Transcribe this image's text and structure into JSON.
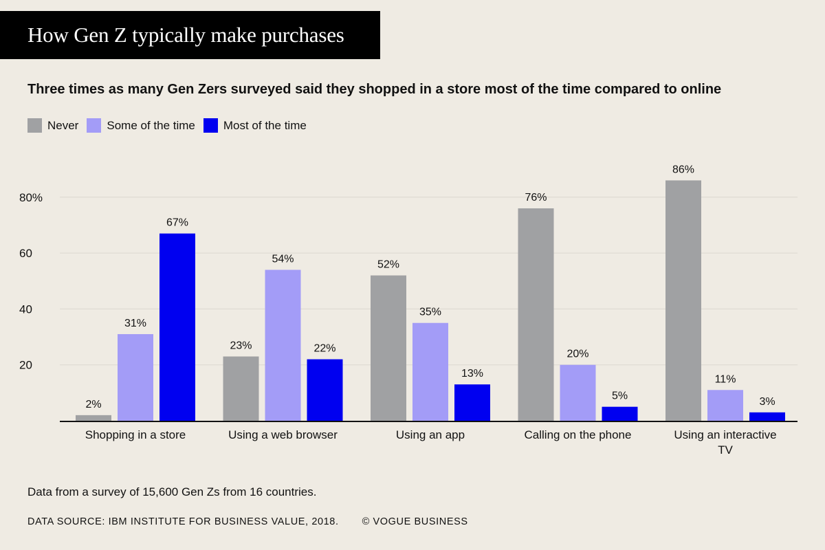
{
  "title": "How Gen Z typically make purchases",
  "subtitle": "Three times as many Gen Zers surveyed said they shopped in a store most of the time compared to online",
  "footnote": "Data from a survey of 15,600 Gen Zs from 16 countries.",
  "source": "DATA SOURCE: IBM INSTITUTE FOR BUSINESS VALUE, 2018.",
  "credit": "© VOGUE BUSINESS",
  "colors": {
    "background": "#efebe3",
    "never": "#a0a1a3",
    "some": "#a39cf7",
    "most": "#0000f0",
    "gridline": "#dcd8d0",
    "axis": "#111111"
  },
  "chart_data": {
    "type": "bar",
    "title": "How Gen Z typically make purchases",
    "subtitle": "Three times as many Gen Zers surveyed said they shopped in a store most of the time compared to online",
    "xlabel": "",
    "ylabel": "",
    "ylim": [
      0,
      86
    ],
    "yticks": [
      20,
      40,
      60,
      80
    ],
    "ytick_labels": [
      "20",
      "40",
      "60",
      "80%"
    ],
    "grid": true,
    "legend_position": "top-left",
    "categories": [
      [
        "Shopping in a store"
      ],
      [
        "Using a web browser"
      ],
      [
        "Using an app"
      ],
      [
        "Calling on the phone"
      ],
      [
        "Using an interactive",
        "TV"
      ]
    ],
    "series": [
      {
        "name": "Never",
        "color": "#a0a1a3",
        "values": [
          2,
          23,
          52,
          76,
          86
        ],
        "labels": [
          "2%",
          "23%",
          "52%",
          "76%",
          "86%"
        ]
      },
      {
        "name": "Some of the time",
        "color": "#a39cf7",
        "values": [
          31,
          54,
          35,
          20,
          11
        ],
        "labels": [
          "31%",
          "54%",
          "35%",
          "20%",
          "11%"
        ]
      },
      {
        "name": "Most of the time",
        "color": "#0000f0",
        "values": [
          67,
          22,
          13,
          5,
          3
        ],
        "labels": [
          "67%",
          "22%",
          "13%",
          "5%",
          "3%"
        ]
      }
    ]
  }
}
